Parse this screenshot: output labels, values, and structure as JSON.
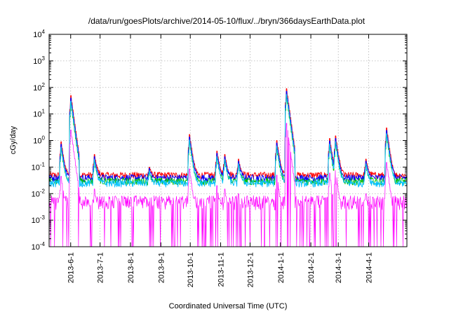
{
  "chart_data": {
    "type": "line",
    "title": "/data/run/goesPlots/archive/2014-05-10/flux/../bryn/366daysEarthData.plot",
    "xlabel": "Coordinated Universal Time (UTC)",
    "ylabel": "cGy/day",
    "yscale": "log",
    "ylim": [
      0.0001,
      10000
    ],
    "xlim": [
      "2013-05-10",
      "2014-05-10"
    ],
    "grid": true,
    "legend": "none",
    "x_ticks": [
      "2013-6-1",
      "2013-7-1",
      "2013-8-1",
      "2013-9-1",
      "2013-10-1",
      "2013-11-1",
      "2013-12-1",
      "2014-1-1",
      "2014-2-1",
      "2014-3-1",
      "2014-4-1"
    ],
    "y_ticks": [
      {
        "base": "10",
        "exp": "-4",
        "value": 0.0001
      },
      {
        "base": "10",
        "exp": "-3",
        "value": 0.001
      },
      {
        "base": "10",
        "exp": "-2",
        "value": 0.01
      },
      {
        "base": "10",
        "exp": "-1",
        "value": 0.1
      },
      {
        "base": "10",
        "exp": "0",
        "value": 1
      },
      {
        "base": "10",
        "exp": "1",
        "value": 10
      },
      {
        "base": "10",
        "exp": "2",
        "value": 100
      },
      {
        "base": "10",
        "exp": "3",
        "value": 1000
      },
      {
        "base": "10",
        "exp": "4",
        "value": 10000
      }
    ],
    "series": [
      {
        "color": "#ff0000",
        "baseline": 0.05
      },
      {
        "color": "#0000ff",
        "baseline": 0.04
      },
      {
        "color": "#00c000",
        "baseline": 0.03
      },
      {
        "color": "#00c0ff",
        "baseline": 0.025
      },
      {
        "color": "#ff00ff",
        "baseline": 0.006
      }
    ],
    "events": [
      {
        "date": "2013-05-22",
        "peak": 0.9
      },
      {
        "date": "2013-06-01",
        "peak": 50
      },
      {
        "date": "2013-06-25",
        "peak": 0.3
      },
      {
        "date": "2013-08-20",
        "peak": 0.1
      },
      {
        "date": "2013-09-30",
        "peak": 1.7
      },
      {
        "date": "2013-10-28",
        "peak": 0.4
      },
      {
        "date": "2013-11-05",
        "peak": 0.3
      },
      {
        "date": "2013-11-19",
        "peak": 0.2
      },
      {
        "date": "2013-12-28",
        "peak": 1.0
      },
      {
        "date": "2014-01-07",
        "peak": 90
      },
      {
        "date": "2014-02-20",
        "peak": 1.2
      },
      {
        "date": "2014-02-26",
        "peak": 1.5
      },
      {
        "date": "2014-03-29",
        "peak": 0.2
      },
      {
        "date": "2014-04-19",
        "peak": 3.0
      }
    ]
  }
}
